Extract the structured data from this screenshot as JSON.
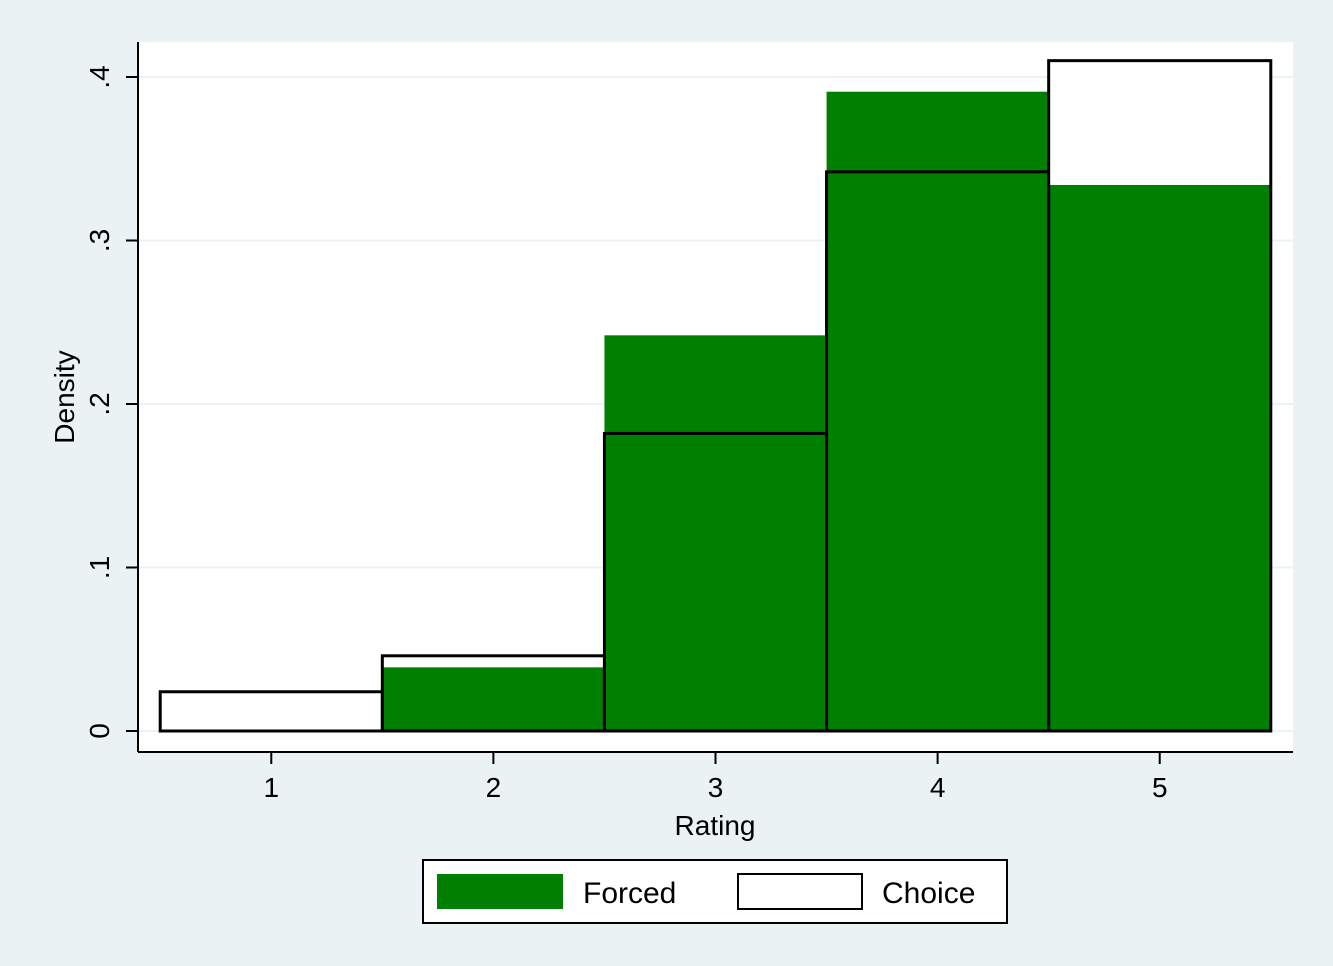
{
  "chart_data": {
    "type": "bar",
    "subtype": "overlaid-histogram",
    "categories": [
      "1",
      "2",
      "3",
      "4",
      "5"
    ],
    "x": [
      1,
      2,
      3,
      4,
      5
    ],
    "series": [
      {
        "name": "Forced",
        "values": [
          0,
          0.039,
          0.242,
          0.391,
          0.334
        ],
        "color": "#008000",
        "style": "filled"
      },
      {
        "name": "Choice",
        "values": [
          0.024,
          0.046,
          0.182,
          0.342,
          0.41
        ],
        "color": "#ffffff",
        "style": "outline"
      }
    ],
    "xlabel": "Rating",
    "ylabel": "Density",
    "xlim": [
      0.4,
      5.6
    ],
    "ylim": [
      0,
      0.4
    ],
    "yticks": [
      0,
      0.1,
      0.2,
      0.3,
      0.4
    ],
    "ytick_labels": [
      "0",
      ".1",
      ".2",
      ".3",
      ".4"
    ],
    "xtick_labels": [
      "1",
      "2",
      "3",
      "4",
      "5"
    ],
    "grid": true,
    "legend_position": "bottom"
  },
  "colors": {
    "background": "#eaf2f3",
    "plot_area": "#ffffff",
    "gridline": "#eaf2f3",
    "forced": "#008000",
    "choice": "#ffffff",
    "outline": "#000000"
  }
}
